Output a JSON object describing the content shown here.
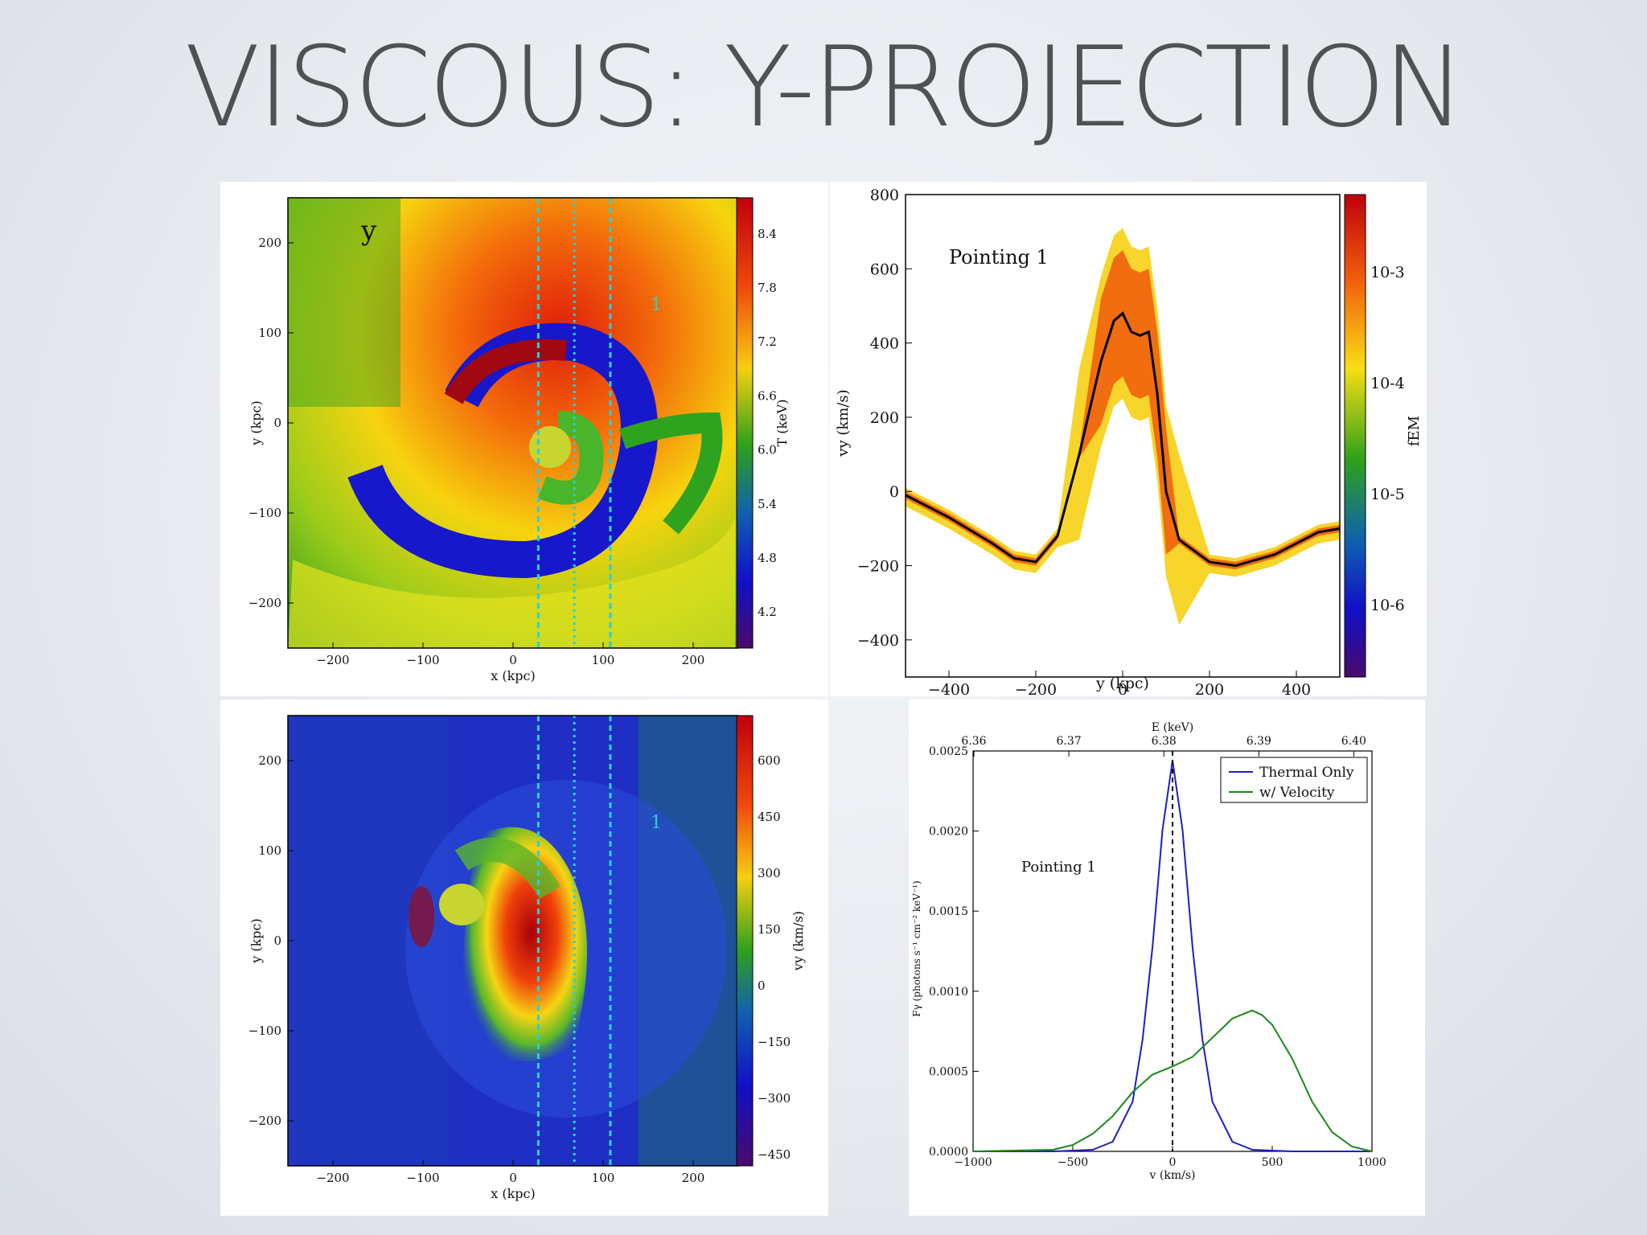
{
  "slide": {
    "title": "VISCOUS: Y-PROJECTION"
  },
  "chart_data": [
    {
      "type": "heatmap",
      "xlabel": "x (kpc)",
      "ylabel": "y (kpc)",
      "xticks": [
        "−200",
        "−100",
        "0",
        "100",
        "200"
      ],
      "yticks": [
        "200",
        "100",
        "0",
        "−100",
        "−200"
      ],
      "xlim": [
        -250,
        250
      ],
      "ylim": [
        -250,
        250
      ],
      "annotation": "y",
      "pointing_label": "1",
      "pointing_lines_x": [
        28,
        68,
        108
      ],
      "colorbar": {
        "label": "T (keV)",
        "ticks": [
          "8.4",
          "7.8",
          "7.2",
          "6.6",
          "6.0",
          "5.4",
          "4.8",
          "4.2"
        ],
        "range": [
          3.8,
          8.8
        ]
      }
    },
    {
      "type": "heatmap",
      "xlabel": "y (kpc)",
      "ylabel": "vy (km/s)",
      "xticks": [
        "−400",
        "−200",
        "0",
        "200",
        "400"
      ],
      "yticks": [
        "800",
        "600",
        "400",
        "200",
        "0",
        "−200",
        "−400"
      ],
      "xlim": [
        -500,
        500
      ],
      "ylim": [
        -500,
        800
      ],
      "annotation": "Pointing 1",
      "colorbar": {
        "label": "fEM",
        "ticks": [
          "10-3",
          "10-4",
          "10-5",
          "10-6"
        ],
        "scale": "log"
      },
      "mean_curve": {
        "x": [
          -500,
          -400,
          -300,
          -250,
          -200,
          -150,
          -100,
          -50,
          -20,
          0,
          20,
          40,
          60,
          80,
          100,
          130,
          200,
          260,
          350,
          450,
          500
        ],
        "y": [
          -10,
          -70,
          -140,
          -180,
          -190,
          -120,
          100,
          350,
          460,
          480,
          430,
          420,
          430,
          260,
          0,
          -130,
          -190,
          -200,
          -170,
          -110,
          -100
        ]
      }
    },
    {
      "type": "heatmap",
      "xlabel": "x (kpc)",
      "ylabel": "vy (km/s)",
      "xticks": [
        "−200",
        "−100",
        "0",
        "100",
        "200"
      ],
      "yticks": [
        "200",
        "100",
        "0",
        "−100",
        "−200"
      ],
      "xlim": [
        -250,
        250
      ],
      "ylim": [
        -250,
        250
      ],
      "pointing_label": "1",
      "pointing_lines_x": [
        28,
        68,
        108
      ],
      "colorbar": {
        "label": "vy (km/s)",
        "ticks": [
          "600",
          "450",
          "300",
          "150",
          "0",
          "−150",
          "−300",
          "−450"
        ],
        "range": [
          -480,
          720
        ]
      }
    },
    {
      "type": "line",
      "xlabel": "v (km/s)",
      "ylabel": "Fγ (photons s⁻¹ cm⁻² keV⁻¹)",
      "top_axis_label": "E (keV)",
      "top_ticks": [
        "6.36",
        "6.37",
        "6.38",
        "6.39",
        "6.40"
      ],
      "xticks": [
        "−1000",
        "−500",
        "0",
        "500",
        "1000"
      ],
      "yticks": [
        "0.0025",
        "0.0020",
        "0.0015",
        "0.0010",
        "0.0005",
        "0.0000"
      ],
      "xlim": [
        -1000,
        1000
      ],
      "ylim": [
        0,
        0.0025
      ],
      "annotation": "Pointing 1",
      "legend_position": "top-right",
      "series": [
        {
          "name": "Thermal Only",
          "color": "#1f1fbf",
          "x": [
            -1000,
            -600,
            -400,
            -300,
            -200,
            -150,
            -100,
            -50,
            0,
            50,
            100,
            150,
            200,
            300,
            400,
            600,
            1000
          ],
          "y": [
            0,
            0,
            1e-05,
            6e-05,
            0.00031,
            0.0007,
            0.00128,
            0.00201,
            0.00244,
            0.00201,
            0.00128,
            0.0007,
            0.00031,
            6e-05,
            1e-05,
            0,
            0
          ]
        },
        {
          "name": "w/ Velocity",
          "color": "#1a8a1a",
          "x": [
            -1000,
            -600,
            -500,
            -400,
            -300,
            -200,
            -100,
            0,
            100,
            200,
            300,
            400,
            450,
            500,
            600,
            700,
            800,
            900,
            1000
          ],
          "y": [
            0,
            1e-05,
            4e-05,
            0.00011,
            0.00022,
            0.00037,
            0.00048,
            0.00053,
            0.00059,
            0.00071,
            0.00083,
            0.00088,
            0.00085,
            0.00079,
            0.00058,
            0.00031,
            0.00012,
            3e-05,
            0
          ]
        }
      ],
      "vline_x": 0
    }
  ]
}
